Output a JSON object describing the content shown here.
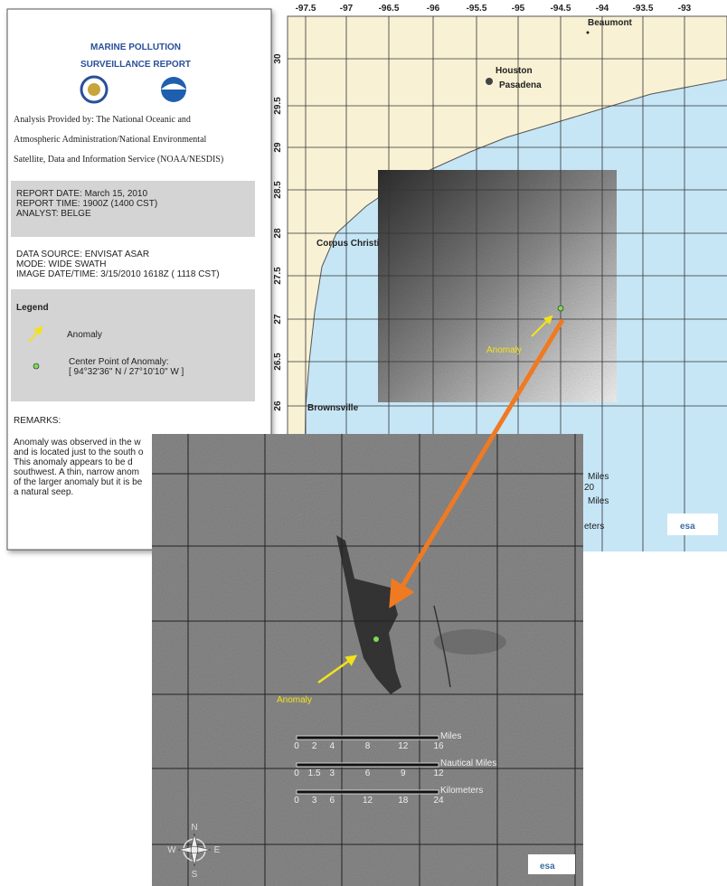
{
  "report": {
    "title": [
      "MARINE POLLUTION",
      "SURVEILLANCE REPORT"
    ],
    "analysis": [
      "Analysis Provided by: The National Oceanic and",
      "Atmospheric Administration/National Environmental",
      "Satellite, Data and Information Service (NOAA/NESDIS)"
    ],
    "report_info": [
      "REPORT DATE:  March 15, 2010",
      "REPORT TIME:   1900Z (1400 CST)",
      "ANALYST:   BELGE"
    ],
    "data_source": [
      "DATA SOURCE:  ENVISAT ASAR",
      "MODE: WIDE SWATH",
      "IMAGE DATE/TIME: 3/15/2010 1618Z ( 1118 CST)"
    ],
    "legend": {
      "title": "Legend",
      "items": [
        "Anomaly",
        "Center Point of Anomaly:",
        "[ 94°32'36\" N / 27°10'10\" W ]"
      ]
    },
    "remarks_heading": "REMARKS:",
    "remarks": [
      "Anomaly was observed in the w",
      "and is located just to the south o",
      "This anomaly appears to be d",
      "southwest. A thin, narrow anom",
      "of the larger anomaly but it is be",
      "a natural seep."
    ]
  },
  "map": {
    "lon_ticks": [
      "-97.5",
      "-97",
      "-96.5",
      "-96",
      "-95.5",
      "-95",
      "-94.5",
      "-94",
      "-93.5",
      "-93"
    ],
    "lat_ticks": [
      "30",
      "29.5",
      "29",
      "28.5",
      "28",
      "27.5",
      "27",
      "26.5",
      "26"
    ],
    "places": [
      "Beaumont",
      "Houston",
      "Pasadena",
      "Corpus Christi",
      "Brownsville"
    ],
    "annotation": "Anomaly",
    "scale_fragments": [
      "Miles",
      "20",
      "Miles",
      "eters"
    ],
    "logo": "esa"
  },
  "inset": {
    "annotation": "Anomaly",
    "scales": [
      {
        "unit": "Miles",
        "ticks": [
          "0",
          "2",
          "4",
          "8",
          "12",
          "16"
        ]
      },
      {
        "unit": "Nautical Miles",
        "ticks": [
          "0",
          "1.5",
          "3",
          "6",
          "9",
          "12"
        ]
      },
      {
        "unit": "Kilometers",
        "ticks": [
          "0",
          "3",
          "6",
          "12",
          "18",
          "24"
        ]
      }
    ],
    "compass": [
      "N",
      "W",
      "E",
      "S"
    ],
    "logo": "esa"
  }
}
